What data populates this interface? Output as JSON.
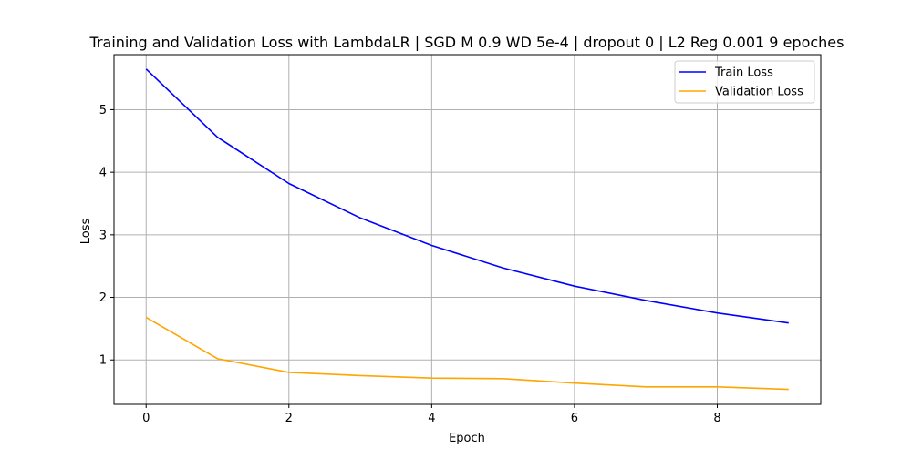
{
  "chart_data": {
    "type": "line",
    "title": "Training and Validation Loss with LambdaLR | SGD M 0.9 WD 5e-4 | dropout 0 | L2 Reg 0.001 9 epoches",
    "xlabel": "Epoch",
    "ylabel": "Loss",
    "x": [
      0,
      1,
      2,
      3,
      4,
      5,
      6,
      7,
      8,
      9
    ],
    "xlim": [
      -0.45,
      9.45
    ],
    "ylim": [
      0.29,
      5.88
    ],
    "xticks": [
      "0",
      "2",
      "4",
      "6",
      "8"
    ],
    "yticks": [
      "1",
      "2",
      "3",
      "4",
      "5"
    ],
    "grid": true,
    "legend_position": "top-right",
    "series": [
      {
        "name": "Train Loss",
        "color": "#0000ff",
        "values": [
          5.65,
          4.56,
          3.82,
          3.27,
          2.83,
          2.47,
          2.18,
          1.95,
          1.75,
          1.59
        ]
      },
      {
        "name": "Validation Loss",
        "color": "#ffa500",
        "values": [
          1.68,
          1.02,
          0.8,
          0.75,
          0.71,
          0.7,
          0.63,
          0.57,
          0.57,
          0.53
        ]
      }
    ]
  }
}
